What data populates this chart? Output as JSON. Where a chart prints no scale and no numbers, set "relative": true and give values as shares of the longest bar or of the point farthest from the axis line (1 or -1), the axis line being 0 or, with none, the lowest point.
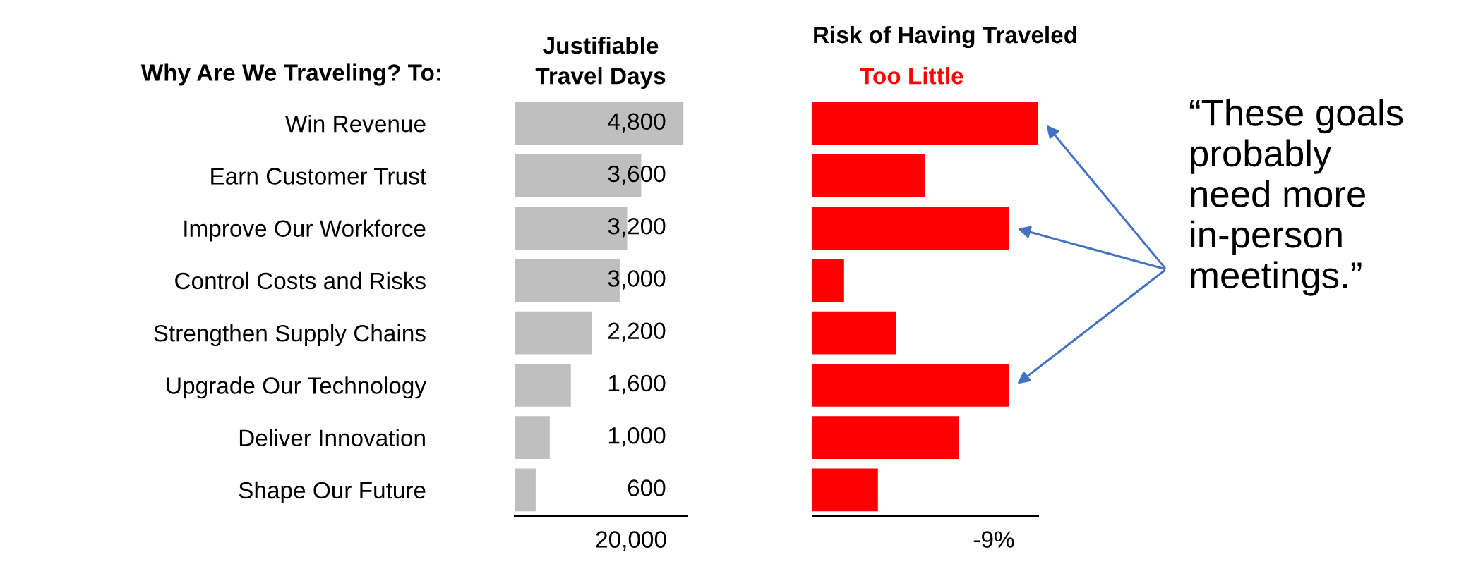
{
  "chart_data": [
    {
      "type": "bar",
      "orientation": "horizontal",
      "title": "Justifiable\nTravel Days",
      "categories": [
        "Win Revenue",
        "Earn Customer Trust",
        "Improve Our Workforce",
        "Control Costs and Risks",
        "Strengthen Supply Chains",
        "Upgrade Our Technology",
        "Deliver Innovation",
        "Shape Our Future"
      ],
      "values": [
        4800,
        3600,
        3200,
        3000,
        2200,
        1600,
        1000,
        600
      ],
      "value_labels": [
        "4,800",
        "3,600",
        "3,200",
        "3,000",
        "2,200",
        "1,600",
        "1,000",
        "600"
      ],
      "color": "#bfbfbf",
      "annotations": [
        "Why Are We Traveling? To:",
        "20,000"
      ]
    },
    {
      "type": "bar",
      "orientation": "horizontal",
      "relative": true,
      "title": "Risk of Having Traveled",
      "subtitle": "Too Little",
      "categories": [
        null,
        null,
        null,
        null,
        null,
        null,
        null,
        null
      ],
      "values": [
        1,
        0.5,
        0.87,
        0.14,
        0.37,
        0.87,
        0.65,
        0.29
      ],
      "color": "#ff0000",
      "annotations": [
        "-9%",
        "“These goals\nprobably\nneed more\nin-person\nmeetings.”"
      ]
    }
  ]
}
